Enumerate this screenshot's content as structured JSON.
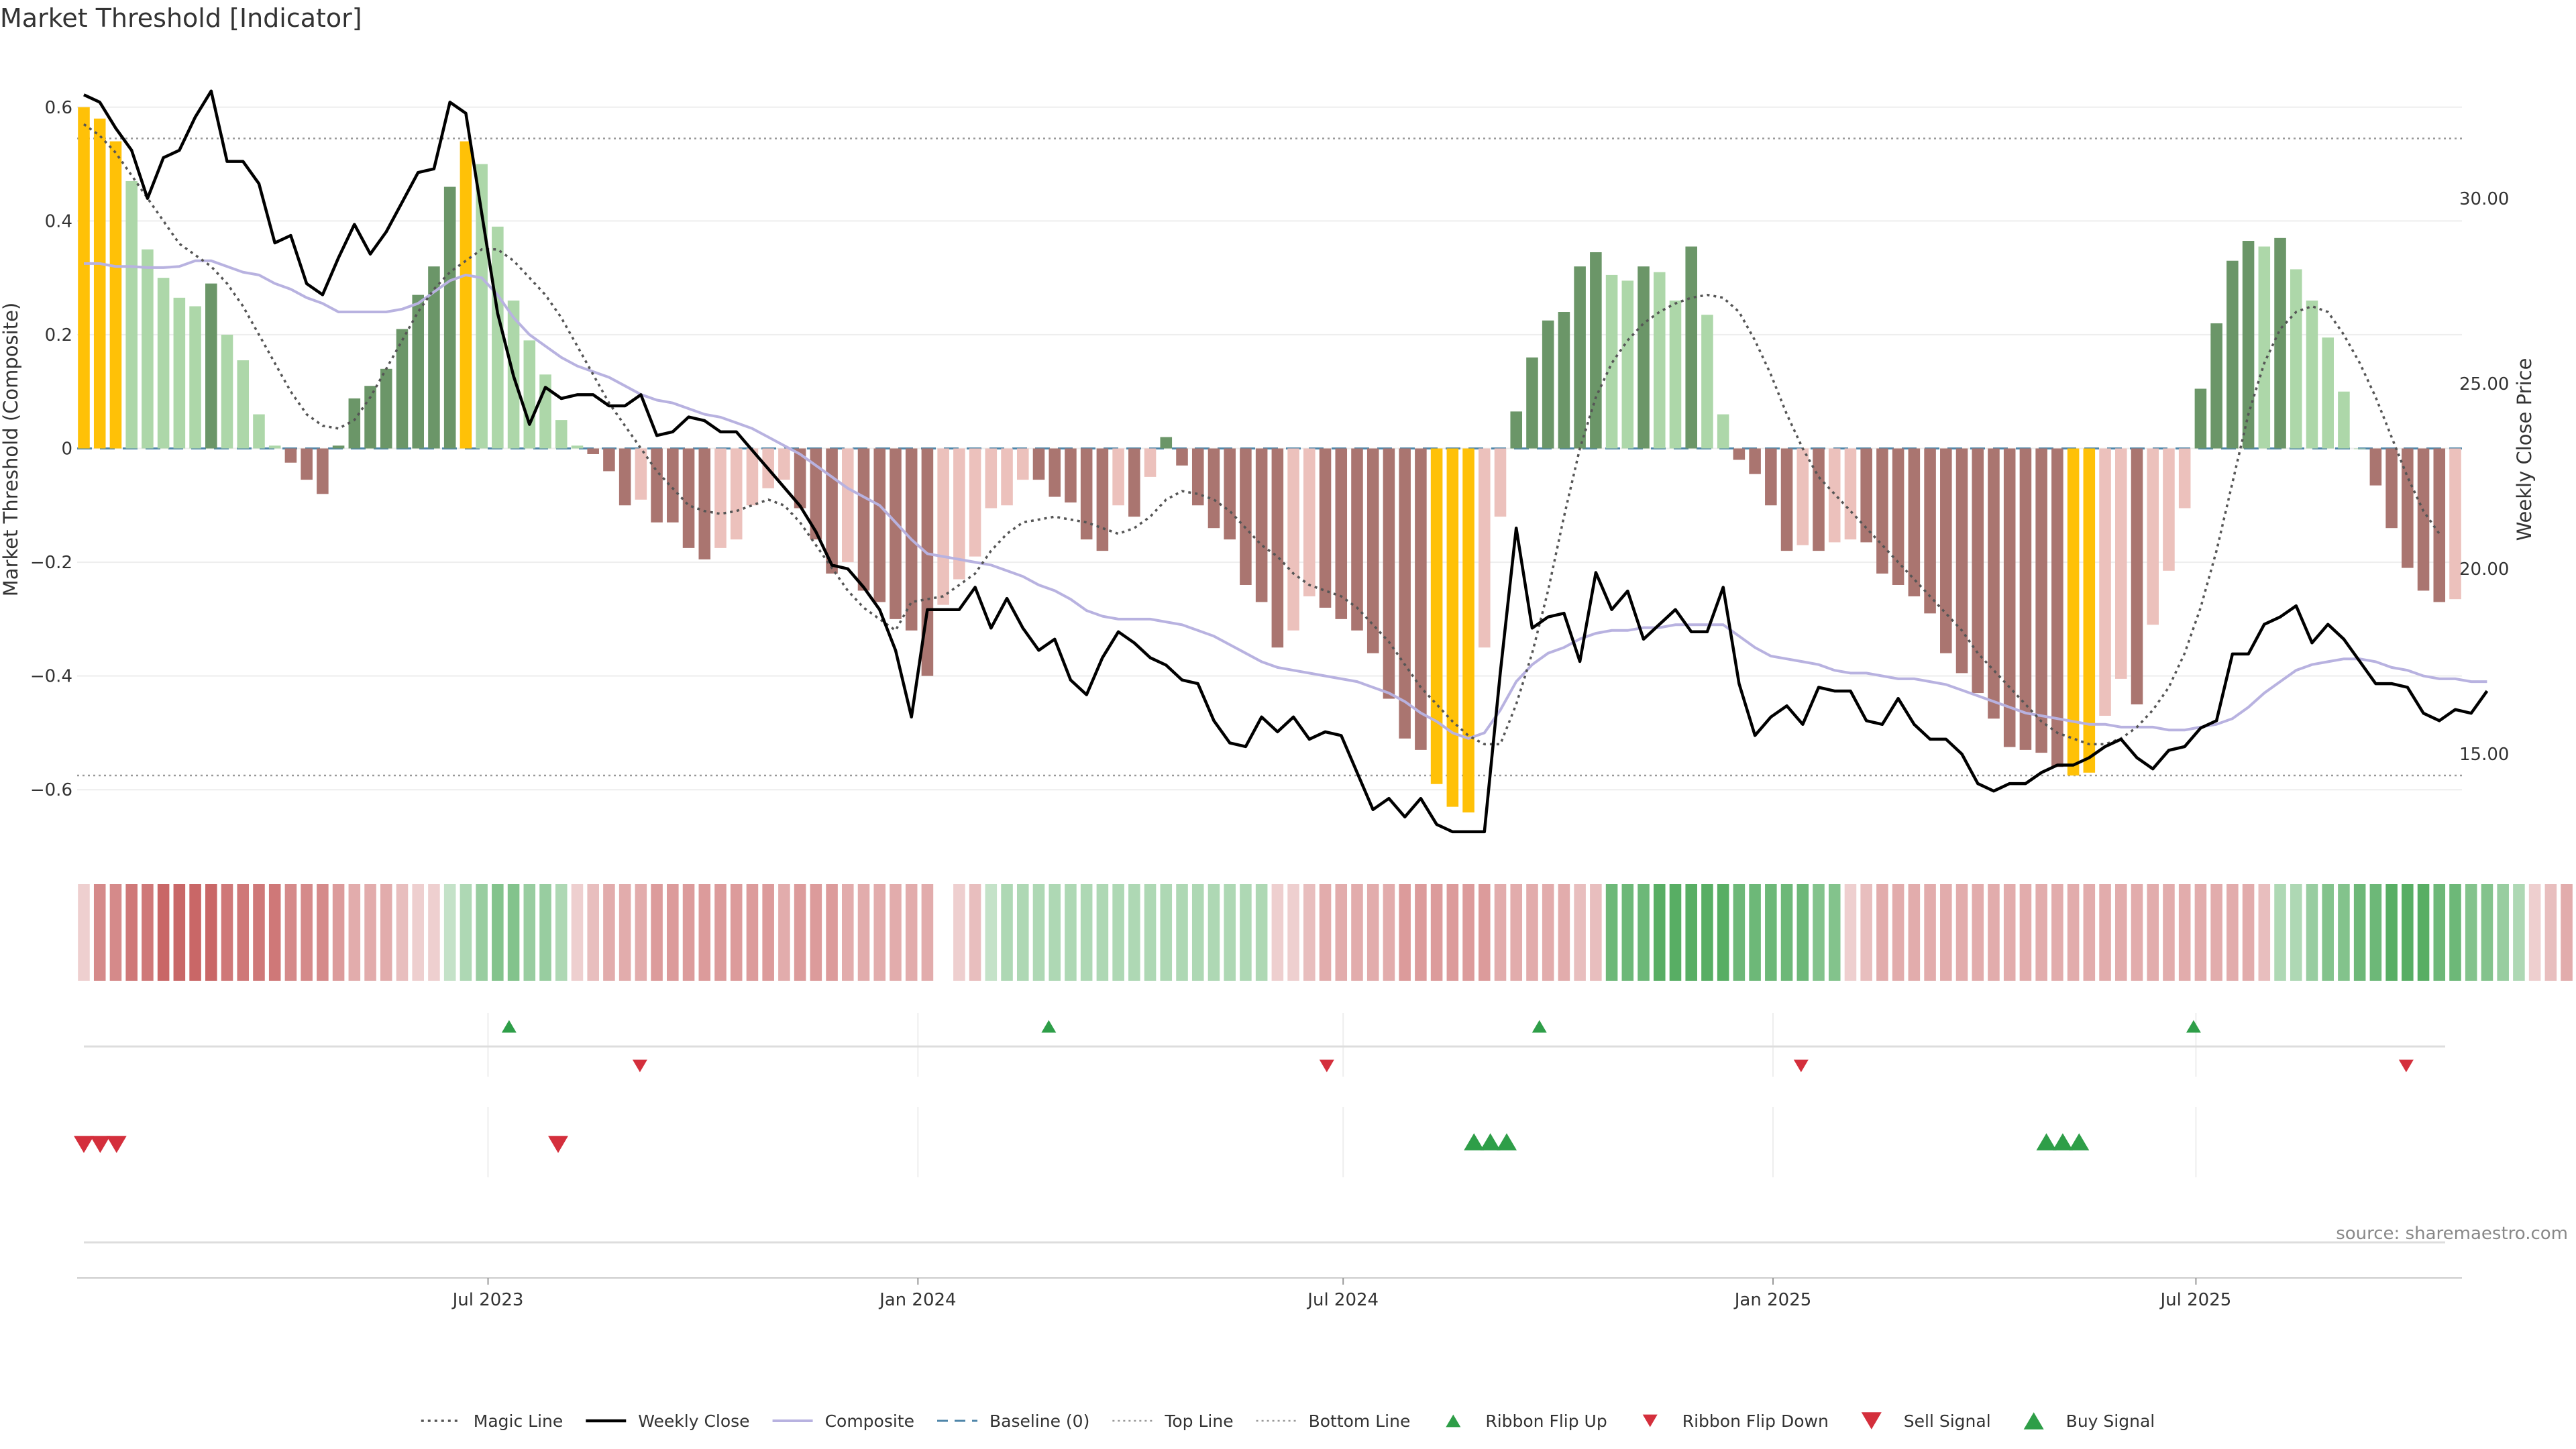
{
  "chart_data": {
    "type": "bar",
    "title": "Market Threshold [Indicator]",
    "ylabel_left": "Market Threshold (Composite)",
    "ylabel_right": "Weekly Close Price",
    "ylim_left": [
      -0.7,
      0.7
    ],
    "ylim_right": [
      12.5,
      34.0
    ],
    "yticks_left": [
      "0.6",
      "0.4",
      "0.2",
      "0",
      "−0.2",
      "−0.4",
      "−0.6"
    ],
    "yticks_left_values": [
      0.6,
      0.4,
      0.2,
      0,
      -0.2,
      -0.4,
      -0.6
    ],
    "yticks_right": [
      "30.00",
      "25.00",
      "20.00",
      "15.00"
    ],
    "yticks_right_values": [
      30,
      25,
      20,
      15
    ],
    "x_start": "2023-01-09",
    "x_end": "2025-10-20",
    "xticks": [
      {
        "date": "2023-07-01",
        "label": "Jul 2023"
      },
      {
        "date": "2024-01-01",
        "label": "Jan 2024"
      },
      {
        "date": "2024-07-01",
        "label": "Jul 2024"
      },
      {
        "date": "2025-01-01",
        "label": "Jan 2025"
      },
      {
        "date": "2025-07-01",
        "label": "Jul 2025"
      }
    ],
    "top_line": 0.545,
    "bottom_line": -0.575,
    "baseline": 0,
    "histogram": [
      0.6,
      0.58,
      0.54,
      0.47,
      0.35,
      0.3,
      0.265,
      0.25,
      0.29,
      0.2,
      0.155,
      0.06,
      0.005,
      -0.025,
      -0.055,
      -0.08,
      0.005,
      0.088,
      0.11,
      0.14,
      0.21,
      0.27,
      0.32,
      0.46,
      0.54,
      0.5,
      0.39,
      0.26,
      0.19,
      0.13,
      0.05,
      0.005,
      -0.01,
      -0.04,
      -0.1,
      -0.09,
      -0.13,
      -0.13,
      -0.175,
      -0.195,
      -0.175,
      -0.16,
      -0.1,
      -0.07,
      -0.055,
      -0.105,
      -0.16,
      -0.22,
      -0.2,
      -0.25,
      -0.27,
      -0.3,
      -0.32,
      -0.4,
      -0.275,
      -0.23,
      -0.19,
      -0.105,
      -0.1,
      -0.055,
      -0.055,
      -0.085,
      -0.095,
      -0.16,
      -0.18,
      -0.1,
      -0.12,
      -0.05,
      0.02,
      -0.03,
      -0.1,
      -0.14,
      -0.16,
      -0.24,
      -0.27,
      -0.35,
      -0.32,
      -0.26,
      -0.28,
      -0.3,
      -0.32,
      -0.36,
      -0.44,
      -0.51,
      -0.53,
      -0.59,
      -0.63,
      -0.64,
      -0.35,
      -0.12,
      0.065,
      0.16,
      0.225,
      0.24,
      0.32,
      0.345,
      0.305,
      0.295,
      0.32,
      0.31,
      0.26,
      0.355,
      0.235,
      0.06,
      -0.02,
      -0.045,
      -0.1,
      -0.18,
      -0.17,
      -0.18,
      -0.165,
      -0.16,
      -0.165,
      -0.22,
      -0.24,
      -0.26,
      -0.29,
      -0.36,
      -0.395,
      -0.43,
      -0.475,
      -0.525,
      -0.53,
      -0.535,
      -0.56,
      -0.575,
      -0.57,
      -0.47,
      -0.405,
      -0.45,
      -0.31,
      -0.215,
      -0.105,
      0.105,
      0.22,
      0.33,
      0.365,
      0.355,
      0.37,
      0.315,
      0.26,
      0.195,
      0.1,
      0.0,
      -0.065,
      -0.14,
      -0.21,
      -0.25,
      -0.27,
      -0.265
    ],
    "weekly_close": [
      32.8,
      32.6,
      31.9,
      31.3,
      30.0,
      31.1,
      31.3,
      32.2,
      32.9,
      31.0,
      31.0,
      30.4,
      28.8,
      29.0,
      27.7,
      27.4,
      28.4,
      29.3,
      28.5,
      29.1,
      29.9,
      30.7,
      30.8,
      32.6,
      32.3,
      29.6,
      26.9,
      25.2,
      23.9,
      24.9,
      24.6,
      24.7,
      24.7,
      24.4,
      24.4,
      24.7,
      23.6,
      23.7,
      24.1,
      24.0,
      23.7,
      23.7,
      23.2,
      22.7,
      22.2,
      21.7,
      21.0,
      20.1,
      20.0,
      19.5,
      18.9,
      17.8,
      16.0,
      18.9,
      18.9,
      18.9,
      19.5,
      18.4,
      19.2,
      18.4,
      17.8,
      18.1,
      17.0,
      16.6,
      17.6,
      18.3,
      18.0,
      17.6,
      17.4,
      17.0,
      16.9,
      15.9,
      15.3,
      15.2,
      16.0,
      15.6,
      16.0,
      15.4,
      15.6,
      15.5,
      14.5,
      13.5,
      13.8,
      13.3,
      13.8,
      13.1,
      12.9,
      12.9,
      12.9,
      17.2,
      21.1,
      18.4,
      18.7,
      18.8,
      17.5,
      19.9,
      18.9,
      19.4,
      18.1,
      18.5,
      18.9,
      18.3,
      18.3,
      19.5,
      16.9,
      15.5,
      16.0,
      16.3,
      15.8,
      16.8,
      16.7,
      16.7,
      15.9,
      15.8,
      16.5,
      15.8,
      15.4,
      15.4,
      15.0,
      14.2,
      14.0,
      14.2,
      14.2,
      14.5,
      14.7,
      14.7,
      14.9,
      15.2,
      15.4,
      14.9,
      14.6,
      15.1,
      15.2,
      15.7,
      15.9,
      17.7,
      17.7,
      18.5,
      18.7,
      19.0,
      18.0,
      18.5,
      18.1,
      17.5,
      16.9,
      16.9,
      16.8,
      16.1,
      15.9,
      16.2,
      16.1,
      16.7
    ],
    "magic_line": [
      0.57,
      0.55,
      0.52,
      0.48,
      0.44,
      0.4,
      0.36,
      0.34,
      0.32,
      0.29,
      0.25,
      0.2,
      0.15,
      0.1,
      0.06,
      0.04,
      0.035,
      0.05,
      0.09,
      0.14,
      0.19,
      0.24,
      0.28,
      0.31,
      0.33,
      0.35,
      0.35,
      0.33,
      0.3,
      0.27,
      0.23,
      0.18,
      0.13,
      0.08,
      0.04,
      0.0,
      -0.04,
      -0.07,
      -0.1,
      -0.11,
      -0.115,
      -0.11,
      -0.1,
      -0.09,
      -0.1,
      -0.13,
      -0.17,
      -0.21,
      -0.25,
      -0.28,
      -0.3,
      -0.32,
      -0.27,
      -0.265,
      -0.26,
      -0.24,
      -0.22,
      -0.18,
      -0.15,
      -0.13,
      -0.125,
      -0.12,
      -0.125,
      -0.13,
      -0.14,
      -0.15,
      -0.14,
      -0.12,
      -0.09,
      -0.075,
      -0.08,
      -0.09,
      -0.11,
      -0.14,
      -0.17,
      -0.19,
      -0.22,
      -0.24,
      -0.25,
      -0.26,
      -0.28,
      -0.31,
      -0.34,
      -0.38,
      -0.42,
      -0.45,
      -0.48,
      -0.505,
      -0.52,
      -0.52,
      -0.45,
      -0.36,
      -0.25,
      -0.12,
      0.0,
      0.09,
      0.15,
      0.19,
      0.22,
      0.24,
      0.255,
      0.265,
      0.27,
      0.265,
      0.24,
      0.19,
      0.13,
      0.06,
      0.0,
      -0.05,
      -0.08,
      -0.11,
      -0.14,
      -0.17,
      -0.2,
      -0.23,
      -0.26,
      -0.29,
      -0.32,
      -0.36,
      -0.39,
      -0.42,
      -0.45,
      -0.48,
      -0.5,
      -0.51,
      -0.52,
      -0.52,
      -0.51,
      -0.49,
      -0.46,
      -0.42,
      -0.36,
      -0.28,
      -0.18,
      -0.06,
      0.06,
      0.15,
      0.21,
      0.24,
      0.25,
      0.24,
      0.2,
      0.15,
      0.09,
      0.02,
      -0.05,
      -0.11,
      -0.15
    ],
    "composite": [
      0.325,
      0.325,
      0.32,
      0.32,
      0.318,
      0.318,
      0.32,
      0.33,
      0.33,
      0.32,
      0.31,
      0.305,
      0.29,
      0.28,
      0.265,
      0.255,
      0.24,
      0.24,
      0.24,
      0.24,
      0.245,
      0.255,
      0.275,
      0.295,
      0.305,
      0.3,
      0.27,
      0.23,
      0.2,
      0.18,
      0.16,
      0.145,
      0.135,
      0.125,
      0.11,
      0.095,
      0.085,
      0.08,
      0.07,
      0.06,
      0.055,
      0.045,
      0.035,
      0.02,
      0.005,
      -0.01,
      -0.03,
      -0.05,
      -0.07,
      -0.085,
      -0.1,
      -0.13,
      -0.16,
      -0.185,
      -0.19,
      -0.195,
      -0.2,
      -0.205,
      -0.215,
      -0.225,
      -0.24,
      -0.25,
      -0.265,
      -0.285,
      -0.295,
      -0.3,
      -0.3,
      -0.3,
      -0.305,
      -0.31,
      -0.32,
      -0.33,
      -0.345,
      -0.36,
      -0.375,
      -0.385,
      -0.39,
      -0.395,
      -0.4,
      -0.405,
      -0.41,
      -0.42,
      -0.43,
      -0.445,
      -0.465,
      -0.48,
      -0.5,
      -0.51,
      -0.5,
      -0.46,
      -0.41,
      -0.38,
      -0.36,
      -0.35,
      -0.335,
      -0.325,
      -0.32,
      -0.32,
      -0.315,
      -0.315,
      -0.31,
      -0.31,
      -0.31,
      -0.31,
      -0.33,
      -0.35,
      -0.365,
      -0.37,
      -0.375,
      -0.38,
      -0.39,
      -0.395,
      -0.395,
      -0.4,
      -0.405,
      -0.405,
      -0.41,
      -0.415,
      -0.425,
      -0.435,
      -0.445,
      -0.455,
      -0.465,
      -0.47,
      -0.475,
      -0.48,
      -0.485,
      -0.485,
      -0.49,
      -0.49,
      -0.49,
      -0.495,
      -0.495,
      -0.49,
      -0.485,
      -0.475,
      -0.455,
      -0.43,
      -0.41,
      -0.39,
      -0.38,
      -0.375,
      -0.37,
      -0.37,
      -0.375,
      -0.385,
      -0.39,
      -0.4,
      -0.405,
      -0.405,
      -0.41,
      -0.41
    ],
    "ribbon": [
      -1,
      -5,
      -5,
      -6,
      -6,
      -7,
      -7,
      -7,
      -7,
      -6,
      -6,
      -6,
      -6,
      -5,
      -5,
      -5,
      -4,
      -3,
      -3,
      -3,
      -2,
      -1,
      -1,
      1,
      2,
      3,
      4,
      4,
      3,
      3,
      2,
      -1,
      -2,
      -3,
      -3,
      -3,
      -4,
      -4,
      -4,
      -4,
      -4,
      -4,
      -4,
      -4,
      -3,
      -4,
      -4,
      -4,
      -3,
      -3,
      -3,
      -3,
      -3,
      -3,
      0,
      -1,
      -2,
      1,
      2,
      2,
      2,
      2,
      2,
      2,
      2,
      2,
      2,
      2,
      2,
      2,
      2,
      2,
      2,
      2,
      2,
      -1,
      -1,
      -2,
      -3,
      -3,
      -3,
      -3,
      -3,
      -4,
      -4,
      -4,
      -4,
      -4,
      -4,
      -3,
      -3,
      -3,
      -3,
      -3,
      -2,
      -2,
      5,
      5,
      5,
      6,
      6,
      6,
      6,
      6,
      5,
      5,
      5,
      5,
      5,
      4,
      4,
      -1,
      -2,
      -3,
      -3,
      -3,
      -3,
      -3,
      -3,
      -3,
      -3,
      -3,
      -3,
      -3,
      -3,
      -3,
      -3,
      -3,
      -3,
      -3,
      -3,
      -3,
      -3,
      -3,
      -3,
      -3,
      -3,
      -2,
      2,
      2,
      3,
      4,
      4,
      5,
      5,
      6,
      6,
      6,
      5,
      5,
      4,
      4,
      3,
      2,
      -1,
      -2,
      -3,
      -3,
      -3
    ],
    "ribbon_flip_up": [
      "2023-07-10",
      "2024-02-26",
      "2024-09-23",
      "2025-06-30"
    ],
    "ribbon_flip_down": [
      "2023-09-04",
      "2024-06-24",
      "2025-01-13",
      "2025-09-29"
    ],
    "sell_signals": [
      "2023-01-09",
      "2023-01-16",
      "2023-01-23",
      "2023-07-31"
    ],
    "buy_signals": [
      "2024-08-26",
      "2024-09-02",
      "2024-09-09",
      "2025-04-28",
      "2025-05-05",
      "2025-05-12"
    ],
    "colors": {
      "extreme": "#FFC107",
      "pos_strong": "#6B9668",
      "pos_weak": "#ADD7A9",
      "neg_strong": "#AA7570",
      "neg_weak": "#ECC1BC",
      "weekly_close": "#000000",
      "composite": "#B8B2E0",
      "magic_line": "#555555",
      "baseline": "#4F86A9",
      "threshold_lines": "#999999",
      "flip_up": "#2E9E48",
      "flip_down": "#D42F3C",
      "ribbon_green": "#42A350",
      "ribbon_red": "#C96767"
    },
    "legend": [
      {
        "label": "Magic Line",
        "kind": "dotted"
      },
      {
        "label": "Weekly Close",
        "kind": "line"
      },
      {
        "label": "Composite",
        "kind": "composite"
      },
      {
        "label": "Baseline (0)",
        "kind": "dashed"
      },
      {
        "label": "Top Line",
        "kind": "thin-dotted"
      },
      {
        "label": "Bottom Line",
        "kind": "thin-dotted"
      },
      {
        "label": "Ribbon Flip Up",
        "kind": "small-up"
      },
      {
        "label": "Ribbon Flip Down",
        "kind": "small-down"
      },
      {
        "label": "Sell Signal",
        "kind": "big-down"
      },
      {
        "label": "Buy Signal",
        "kind": "big-up"
      }
    ],
    "source": "source: sharemaestro.com"
  }
}
